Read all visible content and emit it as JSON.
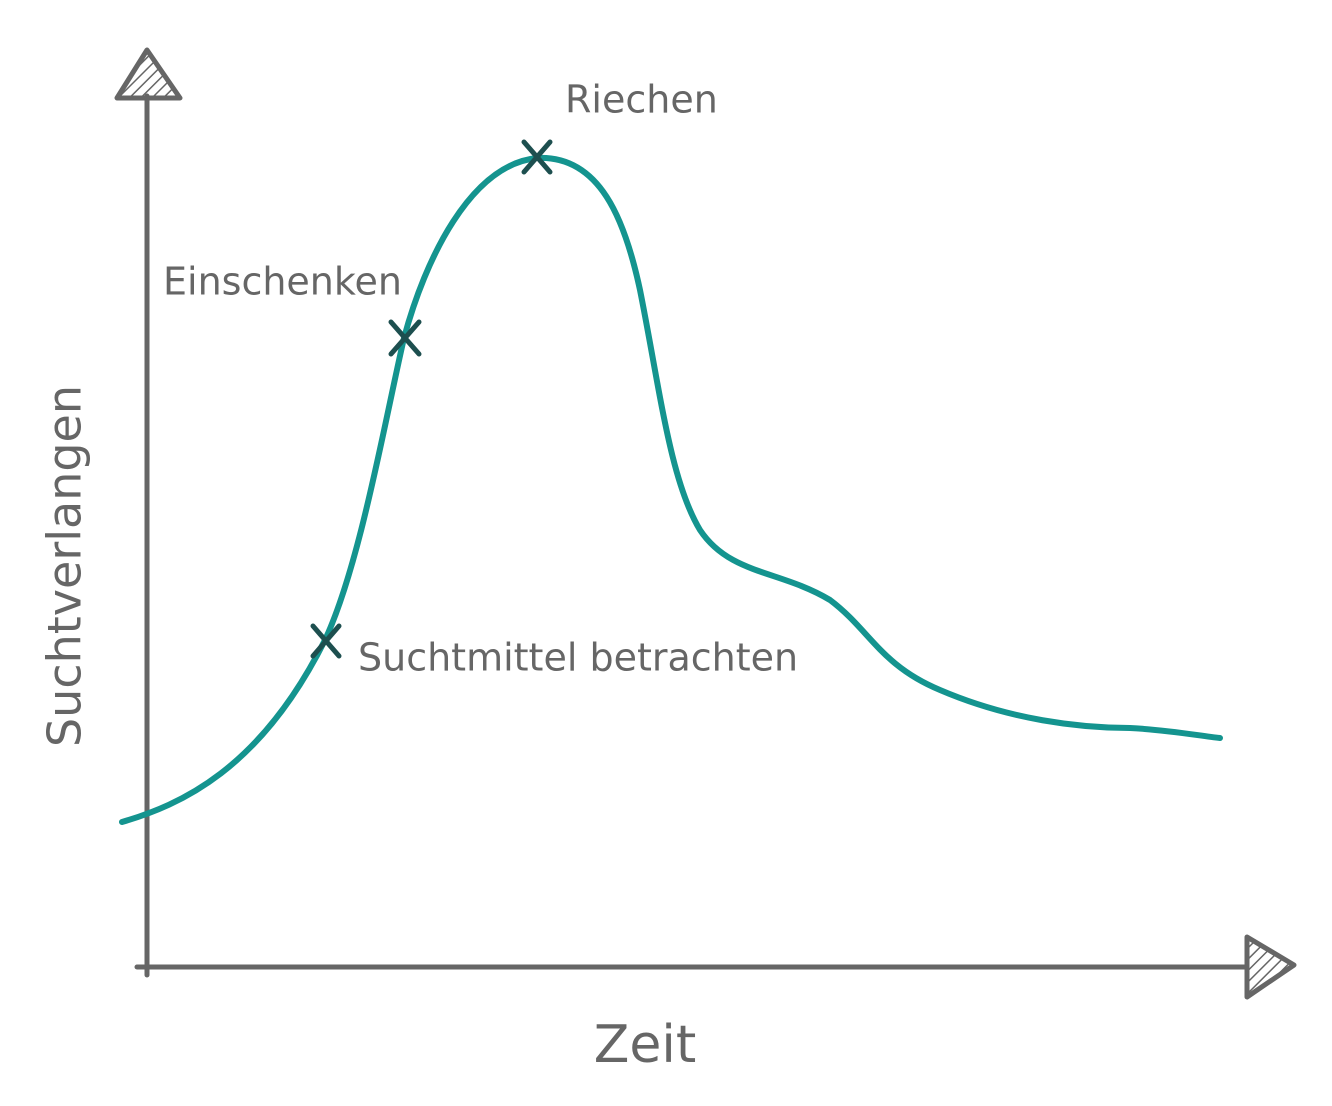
{
  "y_axis_label": "Suchtverlangen",
  "x_axis_label": "Zeit",
  "annotations": [
    {
      "label": "Suchtmittel betrachten"
    },
    {
      "label": "Einschenken"
    },
    {
      "label": "Riechen"
    }
  ]
}
